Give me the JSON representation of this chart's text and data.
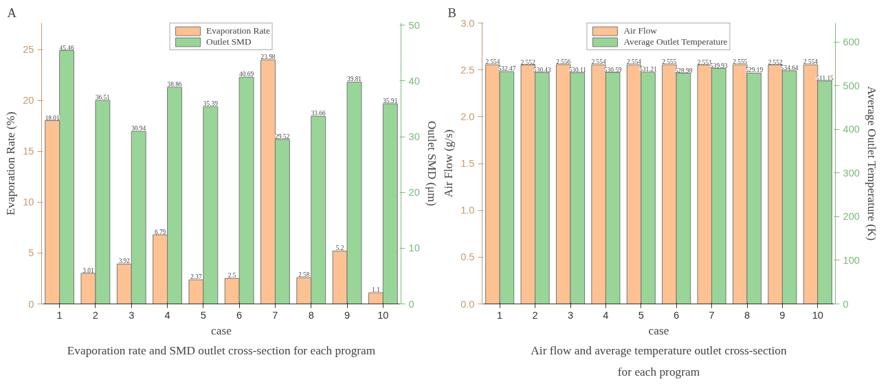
{
  "chart_data": [
    {
      "type": "bar",
      "title": "A",
      "categories": [
        "1",
        "2",
        "3",
        "4",
        "5",
        "6",
        "7",
        "8",
        "9",
        "10"
      ],
      "xlabel": "case",
      "ylabel": "Evaporation Rate (%)",
      "y2label": "Outlet SMD (μm)",
      "series": [
        {
          "name": "Evaporation Rate",
          "color": "#fdc192",
          "values": [
            18.01,
            3.01,
            3.92,
            6.79,
            2.37,
            2.5,
            23.98,
            2.58,
            5.2,
            1.1
          ]
        },
        {
          "name": "Outlet SMD",
          "color": "#99d598",
          "axis": "y2",
          "values": [
            45.46,
            36.51,
            30.94,
            38.86,
            35.39,
            40.69,
            29.52,
            33.66,
            39.81,
            35.91
          ]
        }
      ],
      "ylim": [
        0,
        27.6
      ],
      "yticks": [
        0,
        5,
        10,
        15,
        20,
        25
      ],
      "y2lim": [
        0,
        50.4
      ],
      "y2ticks": [
        0,
        10,
        20,
        30,
        40,
        50
      ],
      "data_labels": true,
      "legend": "top",
      "grid": false,
      "annotations": [
        "Evaporation rate and SMD outlet cross-section for each program"
      ]
    },
    {
      "type": "bar",
      "title": "B",
      "categories": [
        "1",
        "2",
        "3",
        "4",
        "5",
        "6",
        "7",
        "8",
        "9",
        "10"
      ],
      "xlabel": "case",
      "ylabel": "Air Flow (g/s)",
      "y2label": "Average Outlet Temperature (K)",
      "series": [
        {
          "name": "Air Flow",
          "color": "#fdc192",
          "values": [
            2.554,
            2.552,
            2.556,
            2.554,
            2.554,
            2.555,
            2.551,
            2.555,
            2.552,
            2.554
          ]
        },
        {
          "name": "Average Outlet Temperature",
          "color": "#99d598",
          "axis": "y2",
          "values": [
            532.47,
            530.43,
            530.11,
            530.59,
            531.21,
            528.98,
            539.93,
            529.19,
            534.64,
            511.15
          ]
        }
      ],
      "ylim": [
        0,
        3.0
      ],
      "yticks": [
        {
          "value": 0,
          "label": "0.0"
        },
        0.5,
        {
          "value": 1,
          "label": "1.0"
        },
        1.5,
        {
          "value": 2,
          "label": "2.0"
        },
        2.5,
        {
          "value": 3,
          "label": "3.0"
        }
      ],
      "y2lim": [
        0,
        644
      ],
      "y2ticks": [
        0,
        100,
        200,
        300,
        400,
        500,
        600
      ],
      "data_labels": true,
      "legend": "top",
      "grid": false,
      "annotations": [
        "Air flow and average temperature outlet cross-section\nfor each program"
      ]
    }
  ]
}
